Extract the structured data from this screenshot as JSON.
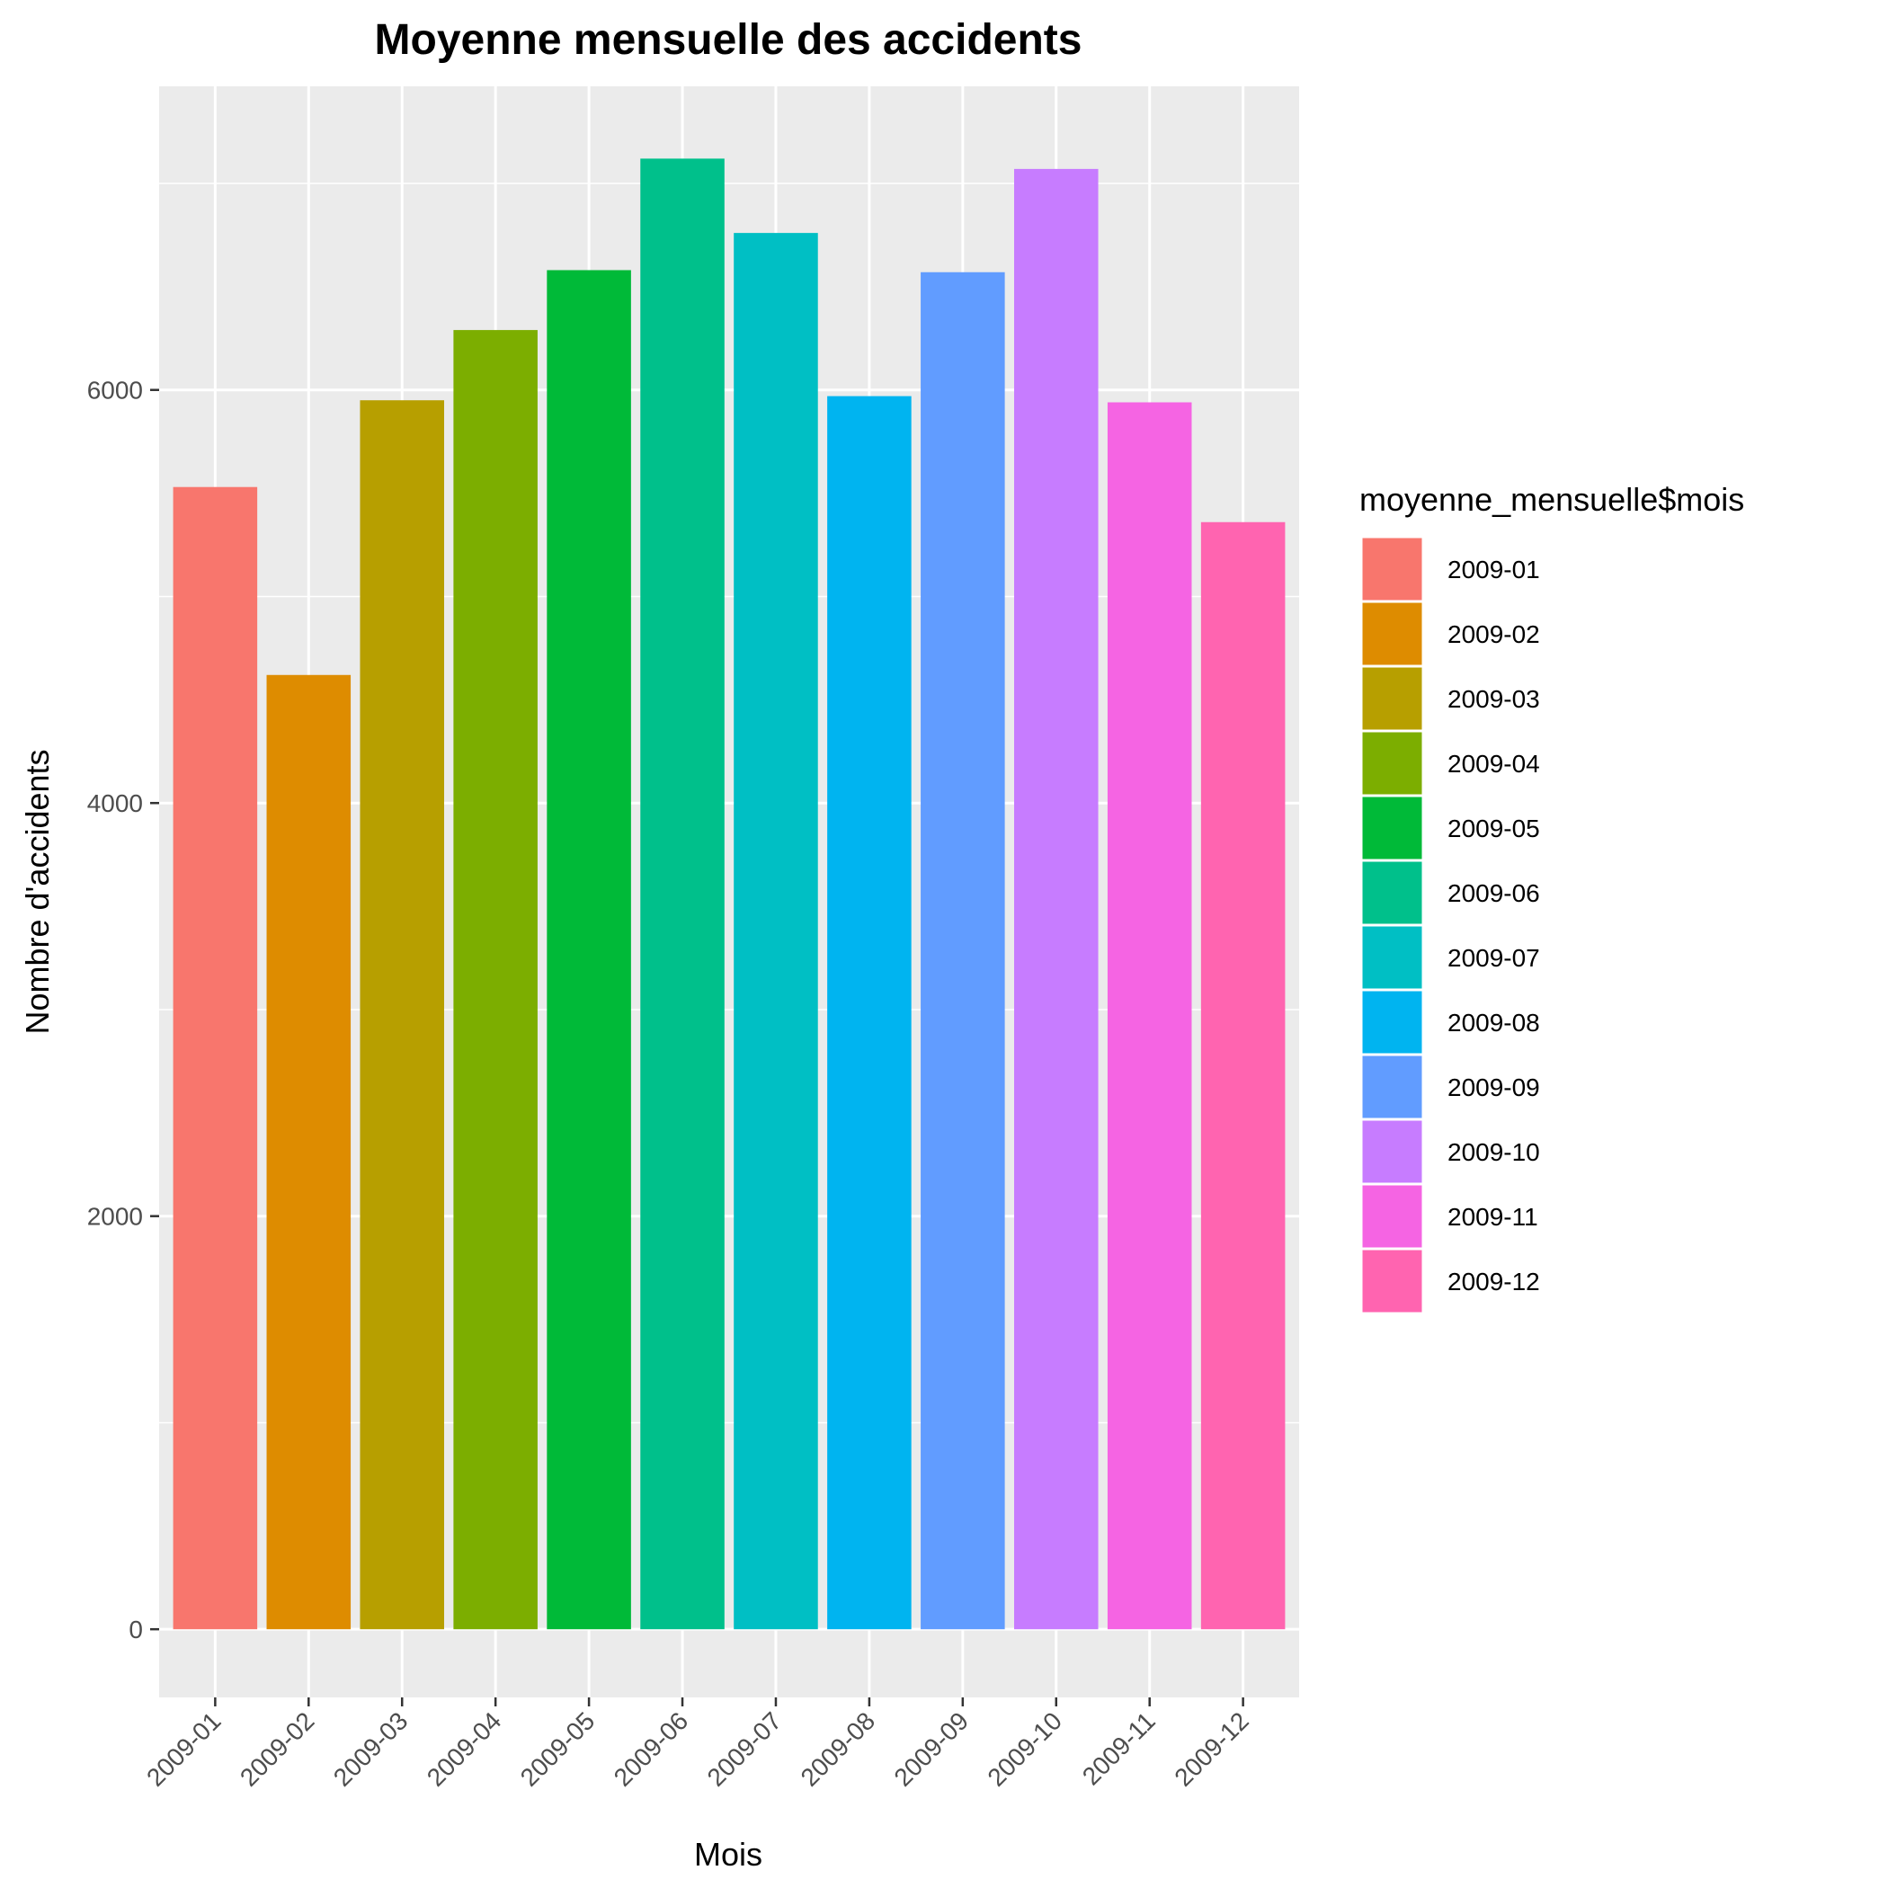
{
  "chart_data": {
    "type": "bar",
    "title": "Moyenne mensuelle des accidents",
    "xlabel": "Mois",
    "ylabel": "Nombre d'accidents",
    "categories": [
      "2009-01",
      "2009-02",
      "2009-03",
      "2009-04",
      "2009-05",
      "2009-06",
      "2009-07",
      "2009-08",
      "2009-09",
      "2009-10",
      "2009-11",
      "2009-12"
    ],
    "values": [
      5530,
      4620,
      5950,
      6290,
      6580,
      7120,
      6760,
      5970,
      6570,
      7070,
      5940,
      5360
    ],
    "colors": [
      "#F8766D",
      "#DE8C00",
      "#B79F00",
      "#7CAE00",
      "#00BA38",
      "#00C08B",
      "#00BFC4",
      "#00B4F0",
      "#619CFF",
      "#C77CFF",
      "#F564E3",
      "#FF64B0"
    ],
    "yticks": [
      0,
      2000,
      4000,
      6000
    ],
    "ylim": [
      -330,
      7470
    ],
    "grid": true,
    "legend": {
      "title": "moyenne_mensuelle$mois",
      "position": "right",
      "entries": [
        "2009-01",
        "2009-02",
        "2009-03",
        "2009-04",
        "2009-05",
        "2009-06",
        "2009-07",
        "2009-08",
        "2009-09",
        "2009-10",
        "2009-11",
        "2009-12"
      ]
    },
    "panel_background": "#EBEBEB",
    "grid_color": "#FFFFFF"
  }
}
